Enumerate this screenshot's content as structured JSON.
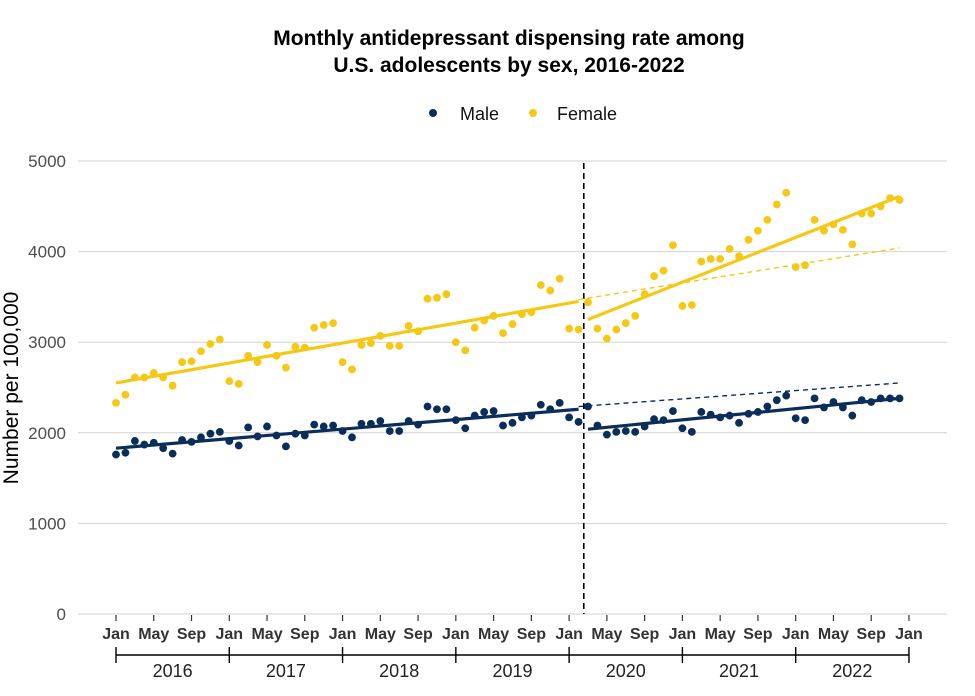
{
  "chart_data": {
    "type": "scatter",
    "title_line1": "Monthly antidepressant dispensing rate among",
    "title_line2": "U.S. adolescents by sex, 2016-2022",
    "xlabel": "",
    "ylabel": "Number per 100,000",
    "ylim": [
      0,
      5000
    ],
    "yticks": [
      0,
      1000,
      2000,
      3000,
      4000,
      5000
    ],
    "ytick_labels": [
      "0",
      "1000",
      "2000",
      "3000",
      "4000",
      "5000"
    ],
    "x_month_ticks": [
      {
        "index": 0,
        "label": "Jan"
      },
      {
        "index": 4,
        "label": "May"
      },
      {
        "index": 8,
        "label": "Sep"
      },
      {
        "index": 12,
        "label": "Jan"
      },
      {
        "index": 16,
        "label": "May"
      },
      {
        "index": 20,
        "label": "Sep"
      },
      {
        "index": 24,
        "label": "Jan"
      },
      {
        "index": 28,
        "label": "May"
      },
      {
        "index": 32,
        "label": "Sep"
      },
      {
        "index": 36,
        "label": "Jan"
      },
      {
        "index": 40,
        "label": "May"
      },
      {
        "index": 44,
        "label": "Sep"
      },
      {
        "index": 48,
        "label": "Jan"
      },
      {
        "index": 52,
        "label": "May"
      },
      {
        "index": 56,
        "label": "Sep"
      },
      {
        "index": 60,
        "label": "Jan"
      },
      {
        "index": 64,
        "label": "May"
      },
      {
        "index": 68,
        "label": "Sep"
      },
      {
        "index": 72,
        "label": "Jan"
      },
      {
        "index": 76,
        "label": "May"
      },
      {
        "index": 80,
        "label": "Sep"
      },
      {
        "index": 84,
        "label": "Jan"
      }
    ],
    "years": [
      "2016",
      "2017",
      "2018",
      "2019",
      "2020",
      "2021",
      "2022"
    ],
    "breakpoint_index": 50,
    "legend_position": "top",
    "grid": true,
    "series": [
      {
        "name": "Male",
        "color": "#0b2d5a",
        "values": [
          1760,
          1780,
          1910,
          1870,
          1890,
          1830,
          1770,
          1920,
          1900,
          1950,
          1990,
          2010,
          1910,
          1860,
          2060,
          1960,
          2070,
          1970,
          1850,
          1990,
          1970,
          2090,
          2070,
          2080,
          2020,
          1950,
          2100,
          2100,
          2130,
          2020,
          2020,
          2130,
          2090,
          2290,
          2260,
          2260,
          2140,
          2050,
          2190,
          2230,
          2240,
          2080,
          2110,
          2170,
          2190,
          2310,
          2260,
          2330,
          2170,
          2120,
          2290,
          2080,
          1980,
          2010,
          2020,
          2010,
          2070,
          2150,
          2140,
          2240,
          2050,
          2010,
          2230,
          2200,
          2170,
          2190,
          2110,
          2210,
          2230,
          2290,
          2360,
          2410,
          2160,
          2140,
          2380,
          2280,
          2340,
          2280,
          2190,
          2360,
          2340,
          2380,
          2380,
          2380
        ],
        "fit_pre": [
          1830,
          2260
        ],
        "fit_post": [
          2040,
          2380
        ],
        "counterfactual": [
          2290,
          2550
        ]
      },
      {
        "name": "Female",
        "color": "#f5c814",
        "values": [
          2330,
          2420,
          2610,
          2610,
          2660,
          2610,
          2520,
          2780,
          2790,
          2900,
          2980,
          3030,
          2570,
          2540,
          2850,
          2780,
          2970,
          2850,
          2720,
          2950,
          2940,
          3160,
          3190,
          3210,
          2780,
          2700,
          2970,
          2990,
          3070,
          2960,
          2960,
          3180,
          3120,
          3480,
          3490,
          3530,
          3000,
          2910,
          3160,
          3240,
          3290,
          3100,
          3200,
          3310,
          3330,
          3630,
          3570,
          3700,
          3150,
          3140,
          3440,
          3150,
          3040,
          3140,
          3210,
          3290,
          3530,
          3730,
          3790,
          4070,
          3400,
          3410,
          3890,
          3920,
          3920,
          4030,
          3950,
          4130,
          4230,
          4350,
          4520,
          4650,
          3830,
          3850,
          4350,
          4230,
          4300,
          4240,
          4080,
          4420,
          4420,
          4500,
          4590,
          4570
        ],
        "fit_pre": [
          2550,
          3450
        ],
        "fit_post": [
          3250,
          4610
        ],
        "counterfactual": [
          3470,
          4040
        ]
      }
    ]
  }
}
